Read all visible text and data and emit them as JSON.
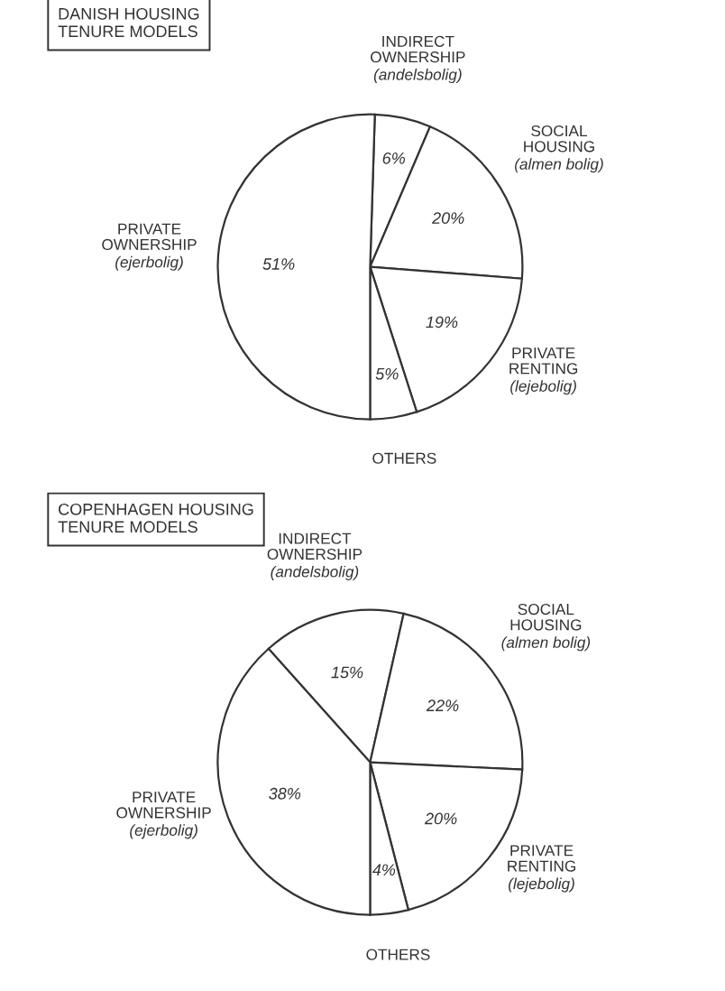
{
  "chart_data": [
    {
      "type": "pie",
      "title": "DANISH HOUSING\nTENURE MODELS",
      "categories": [
        "INDIRECT\nOWNERSHIP\n(andelsbolig)",
        "SOCIAL\nHOUSING\n(almen bolig)",
        "PRIVATE\nRENTING\n(lejebolig)",
        "OTHERS",
        "PRIVATE\nOWNERSHIP\n(ejerbolig)"
      ],
      "values": [
        6,
        20,
        19,
        5,
        51
      ],
      "value_labels": [
        "6%",
        "20%",
        "19%",
        "5%",
        "51%"
      ],
      "colors": [
        "#ffffff",
        "#ffffff",
        "#ffffff",
        "#ffffff",
        "#ffffff"
      ]
    },
    {
      "type": "pie",
      "title": "COPENHAGEN HOUSING\nTENURE MODELS",
      "categories": [
        "INDIRECT\nOWNERSHIP\n(andelsbolig)",
        "SOCIAL\nHOUSING\n(almen bolig)",
        "PRIVATE\nRENTING\n(lejebolig)",
        "OTHERS",
        "PRIVATE\nOWNERSHIP\n(ejerbolig)"
      ],
      "values": [
        15,
        22,
        20,
        4,
        38
      ],
      "value_labels": [
        "15%",
        "22%",
        "20%",
        "4%",
        "38%"
      ],
      "colors": [
        "#ffffff",
        "#ffffff",
        "#ffffff",
        "#ffffff",
        "#ffffff"
      ]
    }
  ]
}
